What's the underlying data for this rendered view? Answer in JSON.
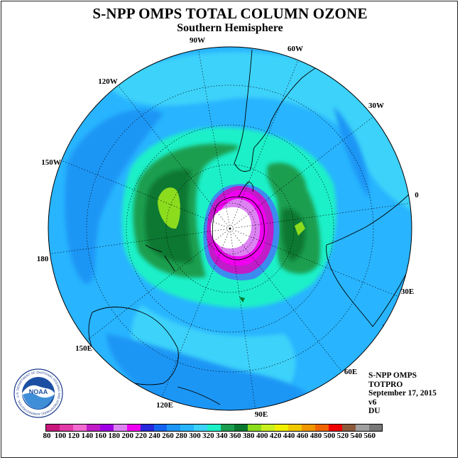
{
  "header": {
    "title": "S-NPP OMPS TOTAL COLUMN OZONE",
    "subtitle": "Southern Hemisphere"
  },
  "info": {
    "line1": "S-NPP OMPS",
    "line2": "TOTPRO",
    "line3": "September 17, 2015",
    "line4": "v6",
    "line5": "DU"
  },
  "longitude_labels": [
    "90W",
    "60W",
    "30W",
    "0",
    "30E",
    "60E",
    "90E",
    "120E",
    "150E",
    "180",
    "150W",
    "120W"
  ],
  "logo": {
    "text": "NOAA",
    "ring_text": "NATIONAL OCEANIC AND ATMOSPHERIC ADMINISTRATION · U.S. DEPARTMENT OF COMMERCE"
  },
  "colorbar": {
    "ticks": [
      "80",
      "100",
      "120",
      "140",
      "160",
      "180",
      "200",
      "220",
      "240",
      "260",
      "280",
      "300",
      "320",
      "340",
      "360",
      "380",
      "400",
      "420",
      "440",
      "460",
      "480",
      "500",
      "520",
      "540",
      "560"
    ],
    "colors": [
      "#c8187c",
      "#e23aa6",
      "#f26ad2",
      "#c01cc8",
      "#a000e6",
      "#dc82f2",
      "#f000f0",
      "#2828dc",
      "#1464f0",
      "#1e96f5",
      "#28b4ff",
      "#3cd2fa",
      "#1ef0c8",
      "#1c9e50",
      "#0a7830",
      "#8cdc1e",
      "#c8f01e",
      "#f0f000",
      "#f0c800",
      "#f09600",
      "#f06400",
      "#f00000",
      "#8c5a3c",
      "#a0a0a0",
      "#787878"
    ]
  },
  "map_colors": {
    "ring_dark_blue": "#3c8cf0",
    "light_blue": "#28b4ff",
    "cyan": "#3cd2fa",
    "mid_blue": "#1e96f5",
    "teal": "#1ef0c8",
    "green_dark": "#1c9e50",
    "green_deep": "#0a7830",
    "yellow_green": "#8cdc1e",
    "magenta": "#f000f0",
    "purple": "#c01cc8",
    "hole_blue": "#2828dc",
    "no_data": "#ffffff"
  }
}
